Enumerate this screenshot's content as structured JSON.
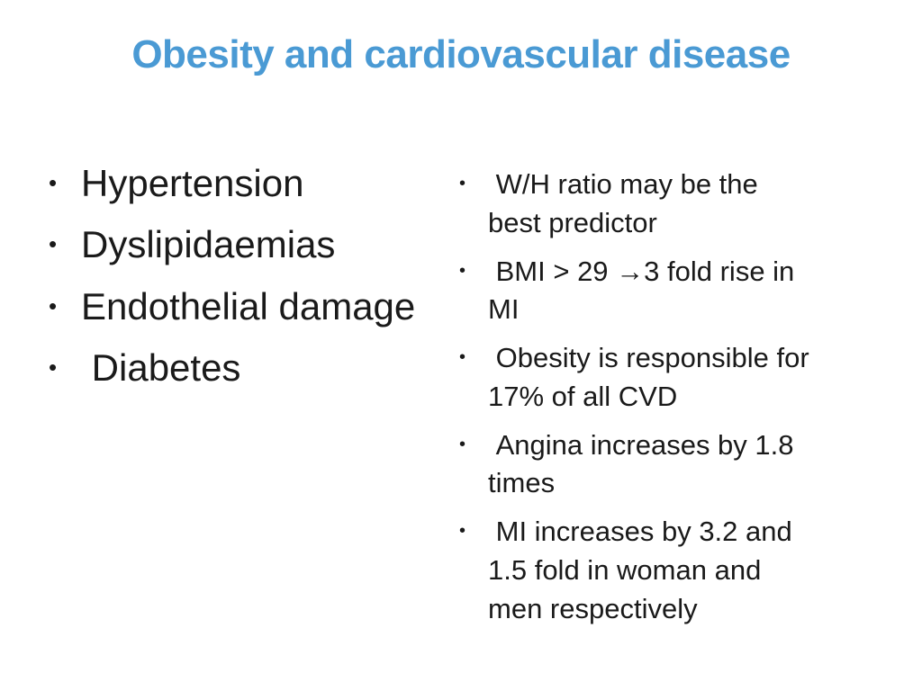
{
  "bullet_char": "•",
  "slide": {
    "title": "Obesity and cardiovascular disease",
    "title_color": "#4a9ad4",
    "text_color": "#1a1a1a",
    "background_color": "#ffffff"
  },
  "left_list": {
    "items": [
      "Hypertension",
      "Dyslipidaemias",
      "Endothelial damage",
      " Diabetes"
    ]
  },
  "right_list": {
    "items": [
      " W/H ratio may be the\nbest predictor",
      " BMI > 29 →3 fold rise in\nMI",
      " Obesity is responsible for\n17% of all CVD",
      " Angina increases by 1.8\ntimes",
      " MI increases by 3.2 and\n1.5 fold in woman and\nmen respectively"
    ]
  }
}
